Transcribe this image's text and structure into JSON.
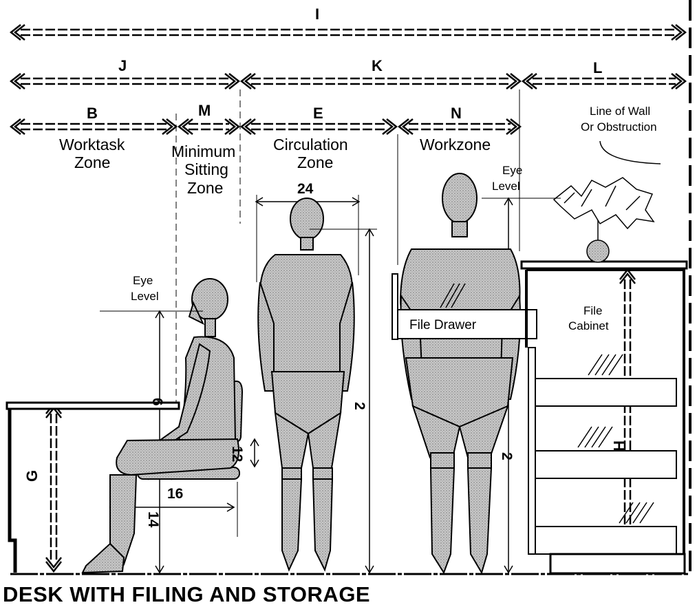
{
  "caption": "DESK WITH FILING AND STORAGE",
  "dimension_letters": {
    "I": "I",
    "J": "J",
    "K": "K",
    "L": "L",
    "B": "B",
    "M": "M",
    "E": "E",
    "N": "N",
    "G": "G",
    "H": "H"
  },
  "zones": {
    "worktask": [
      "Worktask",
      "Zone"
    ],
    "sitting": [
      "Minimum",
      "Sitting",
      "Zone"
    ],
    "circulation": [
      "Circulation",
      "Zone"
    ],
    "workzone": "Workzone"
  },
  "wall_note": [
    "Line of Wall",
    "Or Obstruction"
  ],
  "eye_level": [
    "Eye",
    "Level"
  ],
  "file_drawer": "File Drawer",
  "file_cabinet": [
    "File",
    "Cabinet"
  ],
  "numbers": {
    "shoulder_width": "24",
    "eye_height": "6",
    "seat_depth": "16",
    "seat_thickness": "12",
    "seat_height": "14",
    "stature_female": "2",
    "stature_male": "2"
  }
}
